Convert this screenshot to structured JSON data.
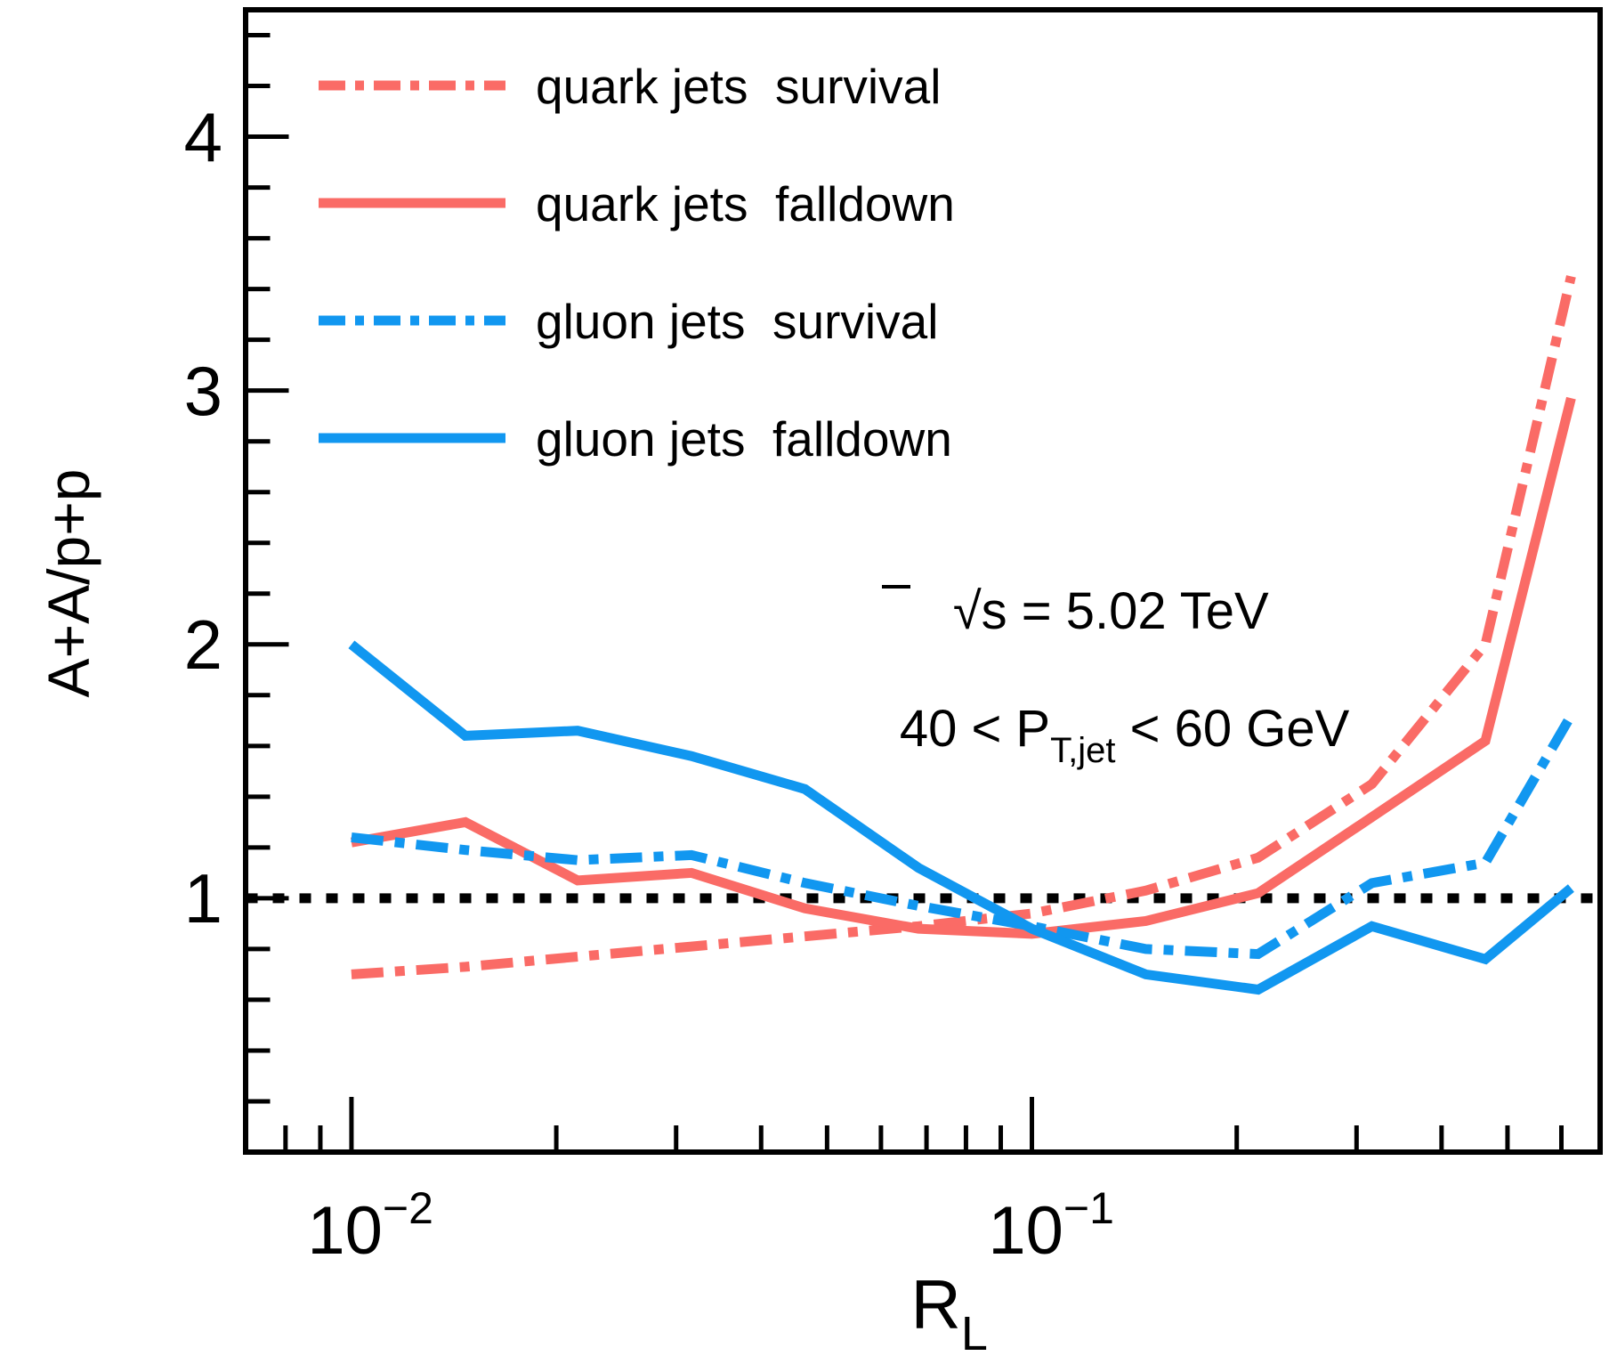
{
  "legend": {
    "items": [
      {
        "label": "quark jets  survival",
        "series_key": "quark_survival"
      },
      {
        "label": "quark jets  falldown",
        "series_key": "quark_falldown"
      },
      {
        "label": "gluon jets  survival",
        "series_key": "gluon_survival"
      },
      {
        "label": "gluon jets  falldown",
        "series_key": "gluon_falldown"
      }
    ]
  },
  "annotations": {
    "energy": {
      "sqrt_symbol": "√",
      "s": "s",
      "rest": " = 5.02 TeV"
    },
    "pt_range": {
      "pre": "40 < P",
      "sub": "T,jet",
      "post": " < 60 GeV"
    }
  },
  "axes": {
    "x": {
      "title": "R",
      "title_sub": "L",
      "scale": "log",
      "major_ticks": [
        {
          "base": "10",
          "exp": "−2",
          "value": 0.01
        },
        {
          "base": "10",
          "exp": "−1",
          "value": 0.1
        }
      ]
    },
    "y": {
      "title": "A+A/p+p",
      "minor_step": 0.2,
      "major_ticks": [
        {
          "label": "1",
          "value": 1
        },
        {
          "label": "2",
          "value": 2
        },
        {
          "label": "3",
          "value": 3
        },
        {
          "label": "4",
          "value": 4
        }
      ]
    }
  },
  "reference_line": {
    "value": 1,
    "style": "dotted",
    "color": "#000000"
  },
  "colors": {
    "quark": "#FA6B66",
    "gluon": "#1197F0",
    "axis": "#000000"
  },
  "chart_data": {
    "type": "line",
    "x_scale": "log",
    "xlim": [
      0.007,
      0.684
    ],
    "ylim": [
      0,
      4.5
    ],
    "xlabel": "R_L",
    "ylabel": "A+A/p+p",
    "reference_y": 1,
    "grid": false,
    "legend_position": "top-left",
    "x": [
      0.01,
      0.0147,
      0.0215,
      0.0316,
      0.0464,
      0.0681,
      0.1,
      0.147,
      0.215,
      0.316,
      0.464,
      0.62
    ],
    "series": [
      {
        "name": "quark jets survival",
        "key": "quark_survival",
        "color": "#FA6B66",
        "line_style": "dashdot",
        "values": [
          0.7,
          0.73,
          0.77,
          0.81,
          0.85,
          0.89,
          0.94,
          1.03,
          1.16,
          1.45,
          2.0,
          3.45
        ]
      },
      {
        "name": "quark jets falldown",
        "key": "quark_falldown",
        "color": "#FA6B66",
        "line_style": "solid",
        "values": [
          1.22,
          1.3,
          1.07,
          1.1,
          0.96,
          0.88,
          0.86,
          0.91,
          1.02,
          1.32,
          1.62,
          2.97
        ]
      },
      {
        "name": "gluon jets survival",
        "key": "gluon_survival",
        "color": "#1197F0",
        "line_style": "dashdot",
        "values": [
          1.24,
          1.19,
          1.15,
          1.17,
          1.06,
          0.97,
          0.89,
          0.8,
          0.78,
          1.06,
          1.14,
          1.72
        ]
      },
      {
        "name": "gluon jets falldown",
        "key": "gluon_falldown",
        "color": "#1197F0",
        "line_style": "solid",
        "values": [
          2.0,
          1.64,
          1.66,
          1.56,
          1.43,
          1.12,
          0.88,
          0.7,
          0.64,
          0.89,
          0.76,
          1.04
        ]
      }
    ]
  }
}
